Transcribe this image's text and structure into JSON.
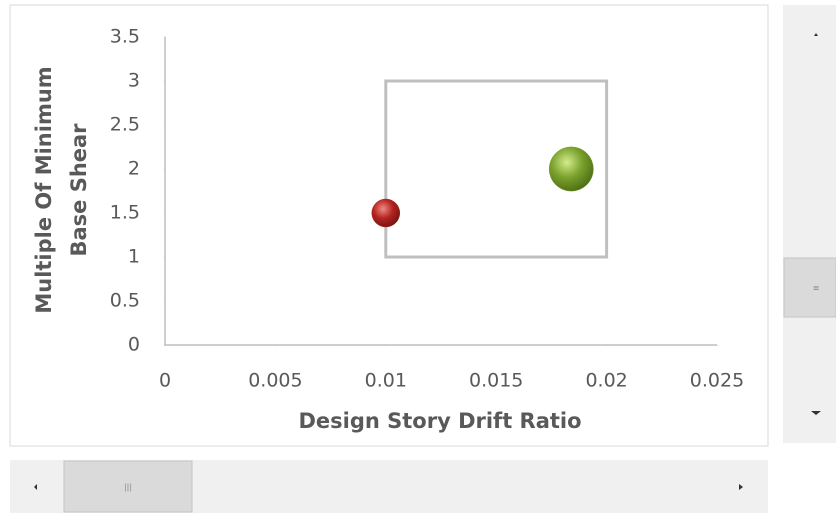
{
  "chart_data": {
    "type": "bubble",
    "xlabel": "Design Story Drift Ratio",
    "ylabel": [
      "Multiple Of Minimum",
      "Base Shear"
    ],
    "xlim": [
      0,
      0.025
    ],
    "xticks": [
      0,
      0.005,
      0.01,
      0.015,
      0.02,
      0.025
    ],
    "ylim": [
      0,
      3.5
    ],
    "yticks": [
      0,
      0.5,
      1,
      1.5,
      2,
      2.5,
      3,
      3.5
    ],
    "grid": false,
    "series": [
      {
        "color": "#b3241f",
        "x": [
          0.01
        ],
        "values": [
          1.5
        ],
        "sizes": [
          1
        ]
      },
      {
        "color": "#7aa12c",
        "x": [
          0.0184
        ],
        "values": [
          2
        ],
        "sizes": [
          2.5
        ]
      }
    ],
    "region": {
      "x": [
        0.01,
        0.02
      ],
      "y": [
        1,
        3
      ],
      "color": "#bfbfbf"
    }
  }
}
